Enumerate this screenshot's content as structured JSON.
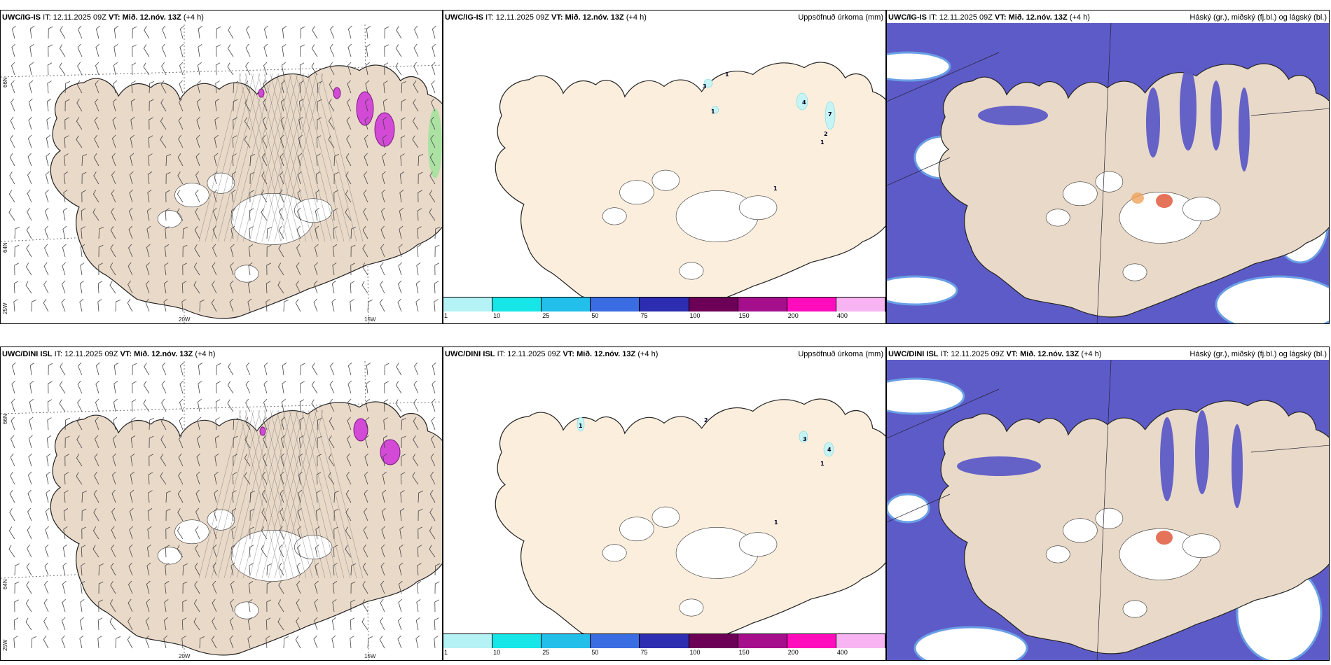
{
  "rows": [
    {
      "model": "UWC/IG-IS",
      "it": "IT: 12.11.2025 09Z",
      "vt_label": "VT:",
      "vt": "Mið. 12.nóv. 13Z",
      "lead": "(+4 h)",
      "precip_title": "Uppsöfnuð úrkoma (mm)",
      "cloud_title": "Háský (gr.), miðský (fj.bl.) og lágský (bl.)",
      "precip_numbers": [
        "3",
        "1",
        "1",
        "4",
        "7",
        "2",
        "1",
        "1"
      ]
    },
    {
      "model": "UWC/DINI ISL",
      "it": "IT: 12.11.2025 09Z",
      "vt_label": "VT:",
      "vt": "Mið. 12.nóv. 13Z",
      "lead": "(+4 h)",
      "precip_title": "Uppsöfnuð úrkoma (mm)",
      "cloud_title": "Háský (gr.), miðský (fj.bl.) og lágský (bl.)",
      "precip_numbers": [
        "1",
        "2",
        "3",
        "4",
        "1",
        "1"
      ]
    }
  ],
  "axis_labels": {
    "lat66": "66N",
    "lat64": "64N",
    "lon25": "25W",
    "lon20": "20W",
    "lon15": "15W"
  },
  "colorbar": {
    "labels": [
      "1",
      "10",
      "25",
      "50",
      "75",
      "100",
      "150",
      "200",
      "400"
    ],
    "colors": [
      "#b4f2f5",
      "#16e6e8",
      "#21bfe9",
      "#3a6de2",
      "#2c2db0",
      "#6c0057",
      "#a50f8c",
      "#ff0dbd",
      "#f8b4f2"
    ]
  },
  "colors": {
    "land": "#e9d9c8",
    "land_light": "#fbeedd",
    "cloud_high": "#d5ecf4",
    "cloud_mid": "#6a9fe6",
    "cloud_low": "#5d5bc7",
    "precip_light": "#c6f4f4"
  }
}
